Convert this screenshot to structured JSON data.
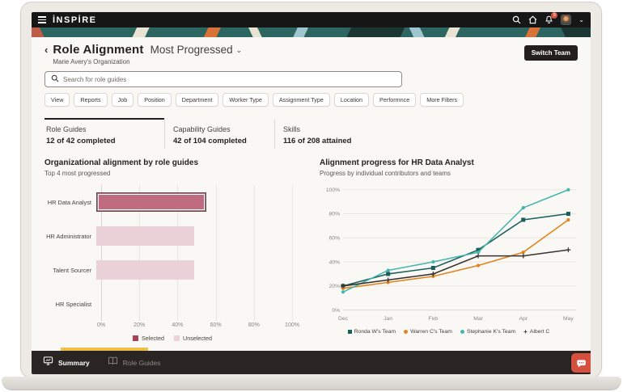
{
  "top_bar": {
    "logo": "İNSPİRE",
    "notification_count": "9",
    "icons": [
      "menu-icon",
      "search-icon",
      "home-icon",
      "notifications-icon",
      "avatar",
      "chevron-down-icon"
    ]
  },
  "header": {
    "back_icon": "‹",
    "title": "Role Alignment",
    "view_selector": "Most Progressed",
    "org": "Marie Avery's Organization",
    "switch_team_label": "Switch Team"
  },
  "search": {
    "placeholder": "Search for role guides"
  },
  "filters": [
    "View",
    "Reports",
    "Job",
    "Position",
    "Department",
    "Worker Type",
    "Assignment Type",
    "Location",
    "Performnce",
    "More Filters"
  ],
  "tabs": [
    {
      "label": "Role Guides",
      "value": "12 of 42 completed",
      "active": true
    },
    {
      "label": "Capability Guides",
      "value": "42 of 104 completed",
      "active": false
    },
    {
      "label": "Skills",
      "value": "116 of 208 attained",
      "active": false
    }
  ],
  "colors": {
    "selected_bar": "#bf6b80",
    "unselected_bar": "#ead2d8",
    "teal_dark": "#1b5f5b",
    "orange": "#e0841f",
    "teal_light": "#45b5ad",
    "dark_line": "#3a322e",
    "gold_indicator": "#eebd4a",
    "chat_red": "#d5503e"
  },
  "chart_data": [
    {
      "type": "bar",
      "orientation": "horizontal",
      "title": "Organizational alignment by role guides",
      "subtitle": "Top 4 most progressed",
      "categories": [
        "HR Data Analyst",
        "HR Administrator",
        "Talent Sourcer",
        "HR Specialist"
      ],
      "values": [
        56,
        50,
        50,
        0
      ],
      "selected_index": 0,
      "xlim": [
        0,
        100
      ],
      "x_ticks": [
        "0%",
        "20%",
        "40%",
        "60%",
        "80%",
        "100%"
      ],
      "grid": true,
      "legend": [
        {
          "label": "Selected",
          "color": "#a8435c"
        },
        {
          "label": "Unselected",
          "color": "#ead2d8"
        }
      ],
      "legend_position": "bottom"
    },
    {
      "type": "line",
      "title": "Alignment progress for HR Data Analyst",
      "subtitle": "Progress by individual contributors and teams",
      "x": [
        "Dec",
        "Jan",
        "Feb",
        "Mar",
        "Apr",
        "May"
      ],
      "ylim": [
        0,
        100
      ],
      "y_ticks": [
        "0%",
        "20%",
        "40%",
        "60%",
        "80%",
        "100%"
      ],
      "grid": true,
      "legend_position": "bottom",
      "series": [
        {
          "name": "Ronda W's Team",
          "color": "#1b5f5b",
          "marker": "square",
          "values": [
            20,
            30,
            35,
            50,
            75,
            80
          ]
        },
        {
          "name": "Warren C's Team",
          "color": "#e0841f",
          "marker": "circle",
          "values": [
            18,
            23,
            28,
            37,
            48,
            75
          ]
        },
        {
          "name": "Stephanie K's Team",
          "color": "#45b5ad",
          "marker": "circle",
          "values": [
            15,
            33,
            40,
            48,
            85,
            100
          ]
        },
        {
          "name": "Albert C",
          "color": "#3a322e",
          "marker": "plus",
          "values": [
            20,
            25,
            30,
            45,
            45,
            50
          ]
        }
      ]
    }
  ],
  "bottom_bar": {
    "items": [
      {
        "label": "Summary",
        "active": true
      },
      {
        "label": "Role Guides",
        "active": false
      }
    ]
  }
}
